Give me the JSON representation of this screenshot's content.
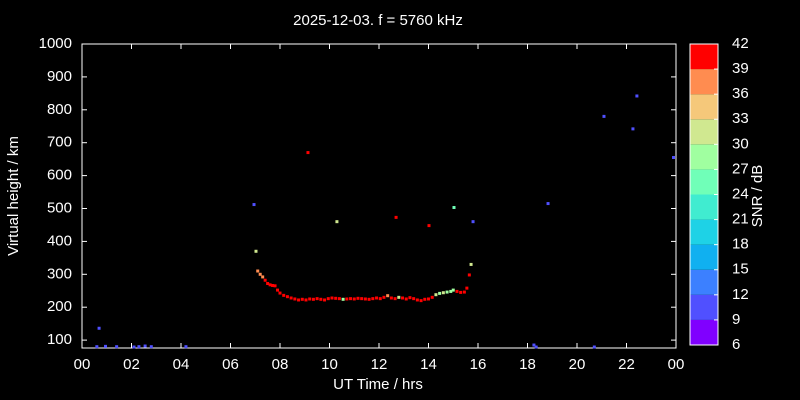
{
  "chart_data": {
    "type": "scatter",
    "title": "2025-12-03. f = 5760 kHz",
    "x_label": "UT Time / hrs",
    "y_label": "Virtual height / km",
    "colorbar_label": "SNR / dB",
    "xlim": [
      0,
      24
    ],
    "xticks": [
      {
        "value": 0,
        "label": "00"
      },
      {
        "value": 2,
        "label": "02"
      },
      {
        "value": 4,
        "label": "04"
      },
      {
        "value": 6,
        "label": "06"
      },
      {
        "value": 8,
        "label": "08"
      },
      10,
      12,
      14,
      16,
      18,
      20,
      22,
      {
        "value": 24,
        "label": "00"
      }
    ],
    "ylim": [
      76,
      1000
    ],
    "yticks": [
      100,
      200,
      300,
      400,
      500,
      600,
      700,
      800,
      900,
      1000
    ],
    "clim": [
      6,
      42
    ],
    "cticks": [
      6,
      9,
      12,
      15,
      18,
      21,
      24,
      27,
      30,
      33,
      36,
      39,
      42
    ],
    "colors": [
      "#8000ff",
      "#5050ff",
      "#3c80ff",
      "#10b0f0",
      "#1ed2e6",
      "#40ecd0",
      "#70ffb8",
      "#a0ffa0",
      "#d0e890",
      "#f5c87a",
      "#ff8c50",
      "#ff5030"
    ],
    "top_color": "#ff0000",
    "x": [
      0.69,
      0.6,
      0.95,
      1.4,
      2.1,
      2.3,
      2.55,
      2.8,
      4.2,
      6.95,
      7.03,
      9.13,
      10.3,
      12.69,
      14.02,
      15.03,
      15.8,
      15.72,
      18.26,
      18.35,
      18.83,
      20.7,
      21.09,
      22.26,
      22.42,
      23.9,
      7.1,
      7.2,
      7.3,
      7.4,
      7.5,
      7.6,
      7.7,
      7.8,
      7.9,
      8.0,
      8.15,
      8.3,
      8.45,
      8.6,
      8.75,
      8.9,
      9.05,
      9.2,
      9.35,
      9.5,
      9.65,
      9.8,
      9.95,
      10.1,
      10.25,
      10.4,
      10.55,
      10.7,
      10.85,
      11.0,
      11.15,
      11.3,
      11.45,
      11.6,
      11.75,
      11.9,
      12.05,
      12.2,
      12.35,
      12.5,
      12.65,
      12.8,
      12.95,
      13.1,
      13.25,
      13.4,
      13.55,
      13.7,
      13.85,
      14.0,
      14.15,
      14.3,
      14.45,
      14.6,
      14.75,
      14.9,
      15.0,
      15.15,
      15.3,
      15.45,
      15.55,
      15.65
    ],
    "values": [
      136,
      80,
      81,
      80,
      79,
      80,
      82,
      80,
      80,
      512,
      370,
      670,
      460,
      473,
      448,
      503,
      460,
      330,
      85,
      79,
      515,
      79,
      780,
      742,
      842,
      655,
      310,
      300,
      292,
      282,
      272,
      268,
      266,
      265,
      252,
      243,
      236,
      232,
      228,
      225,
      222,
      224,
      222,
      225,
      224,
      226,
      224,
      222,
      226,
      228,
      227,
      226,
      224,
      225,
      226,
      225,
      227,
      226,
      225,
      224,
      226,
      228,
      226,
      230,
      235,
      228,
      226,
      230,
      228,
      225,
      229,
      226,
      222,
      220,
      224,
      225,
      230,
      238,
      242,
      244,
      246,
      248,
      252,
      248,
      245,
      246,
      258,
      298
    ],
    "snr": [
      10,
      11,
      10,
      10,
      10,
      11,
      10,
      10,
      10,
      10,
      30,
      40,
      31,
      39,
      39,
      25,
      10,
      31,
      11,
      10,
      10,
      10,
      10,
      10,
      10,
      9,
      37,
      38,
      38,
      39,
      40,
      40,
      40,
      40,
      40,
      40,
      40,
      40,
      40,
      40,
      40,
      40,
      40,
      40,
      40,
      40,
      40,
      40,
      40,
      40,
      39,
      40,
      29,
      40,
      40,
      40,
      40,
      40,
      40,
      40,
      40,
      40,
      40,
      40,
      38,
      40,
      40,
      31,
      40,
      40,
      40,
      40,
      40,
      40,
      40,
      40,
      40,
      31,
      28,
      30,
      29,
      28,
      27,
      40,
      40,
      40,
      40,
      40
    ]
  }
}
